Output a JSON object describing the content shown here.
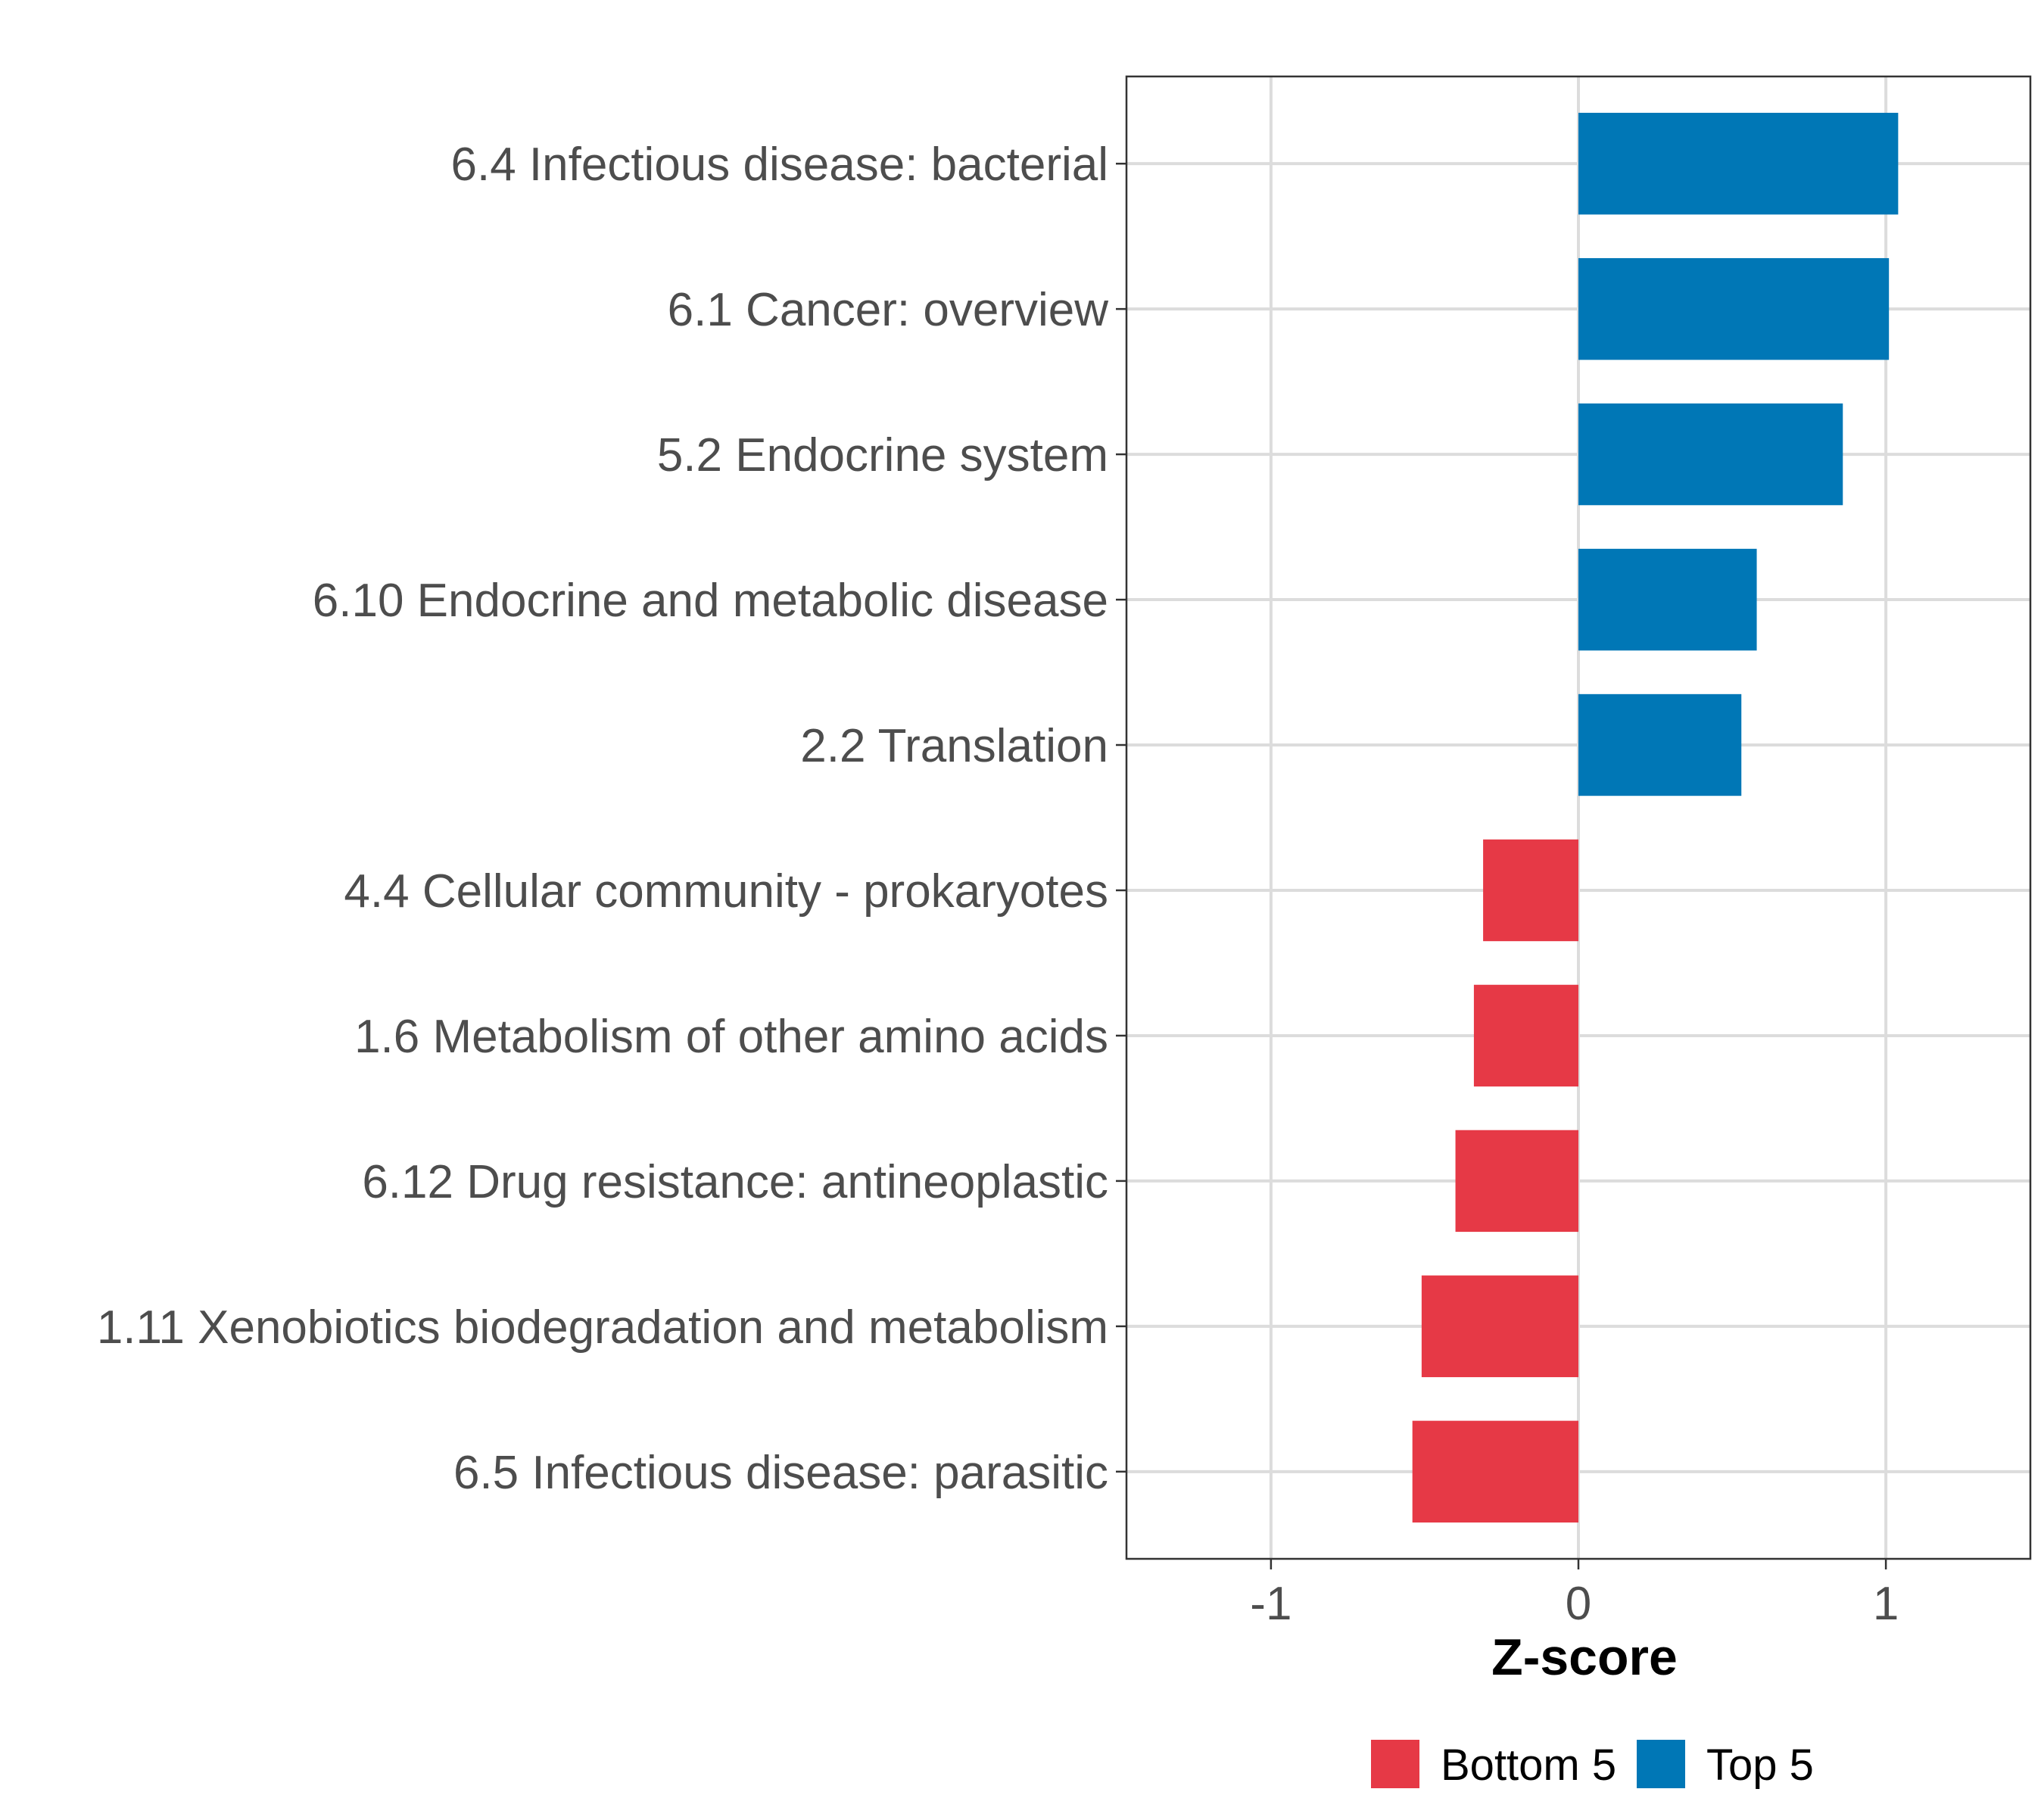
{
  "chart_data": {
    "type": "bar",
    "orientation": "horizontal",
    "title": "",
    "xlabel": "Z-score",
    "ylabel": "",
    "xlim": [
      -1.47,
      1.47
    ],
    "xticks": [
      -1,
      0,
      1
    ],
    "xtick_labels": [
      "-1",
      "0",
      "1"
    ],
    "grid": true,
    "categories": [
      "6.4 Infectious disease: bacterial",
      "6.1 Cancer: overview",
      "5.2 Endocrine system",
      "6.10 Endocrine and metabolic disease",
      "2.2 Translation",
      "4.4 Cellular community - prokaryotes",
      "1.6 Metabolism of other amino acids",
      "6.12 Drug resistance: antineoplastic",
      "1.11 Xenobiotics biodegradation and metabolism",
      "6.5 Infectious disease: parasitic"
    ],
    "values": [
      1.04,
      1.01,
      0.86,
      0.58,
      0.53,
      -0.31,
      -0.34,
      -0.4,
      -0.51,
      -0.54
    ],
    "groups": [
      "Top 5",
      "Top 5",
      "Top 5",
      "Top 5",
      "Top 5",
      "Bottom 5",
      "Bottom 5",
      "Bottom 5",
      "Bottom 5",
      "Bottom 5"
    ],
    "legend": {
      "position": "bottom",
      "entries": [
        {
          "label": "Bottom 5",
          "color": "#E63946"
        },
        {
          "label": "Top 5",
          "color": "#0077B6"
        }
      ]
    }
  }
}
